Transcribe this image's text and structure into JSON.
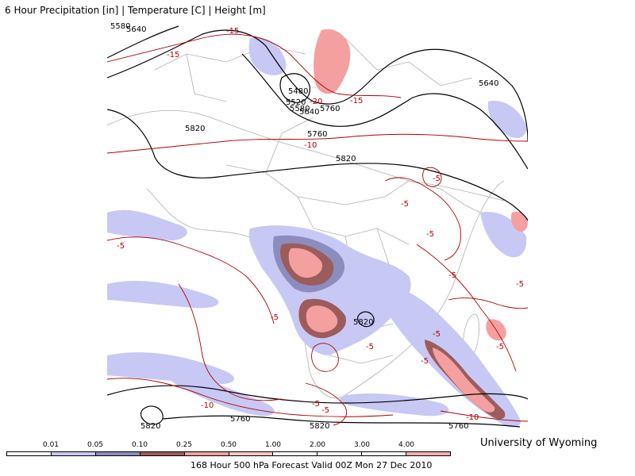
{
  "header": {
    "title": "6 Hour Precipitation [in] | Temperature [C] | Height [m]"
  },
  "footer": {
    "credit": "University of Wyoming",
    "caption": "168 Hour 500 hPa Forecast Valid 00Z Mon 27 Dec 2010"
  },
  "legend": {
    "labels": [
      "0.01",
      "0.05",
      "0.10",
      "0.25",
      "0.50",
      "1.00",
      "2.00",
      "3.00",
      "4.00"
    ],
    "colors": [
      "#ffffff",
      "#c8c8f5",
      "#8c8cbe",
      "#9c5c5c",
      "#f5a0a0",
      "#fcc8c8",
      "#ffffff",
      "#ffffff",
      "#ffffff",
      "#f5b0b0"
    ]
  },
  "contours": {
    "height": [
      "5580",
      "5640",
      "5480",
      "5520",
      "5580",
      "5640",
      "5760",
      "5640",
      "5820",
      "5760",
      "5820",
      "5820",
      "5820",
      "5760",
      "5820",
      "5760"
    ],
    "temperature": [
      "-15",
      "-15",
      "-20",
      "-15",
      "-10",
      "-5",
      "-5",
      "-5",
      "-5",
      "-5",
      "-5",
      "-5",
      "-5",
      "-5",
      "-5",
      "-5",
      "-10",
      "-5",
      "-10",
      "-5"
    ]
  },
  "colors": {
    "height_contour": "#000000",
    "temperature_contour": "#b00000",
    "border": "#aaaaaa",
    "precip_light": "#c8c8f5",
    "precip_mid": "#8c8cbe",
    "precip_dark": "#9c5c5c",
    "precip_pink": "#f5a0a0"
  }
}
